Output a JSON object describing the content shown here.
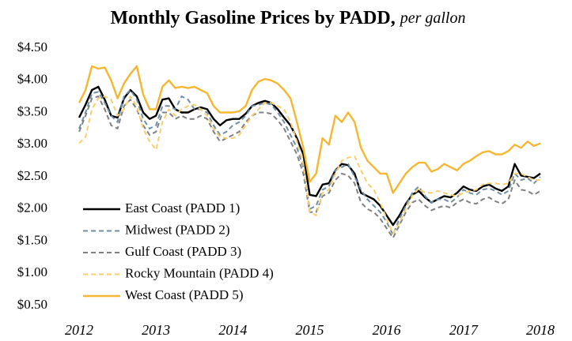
{
  "chart_data": {
    "type": "line",
    "title": "Monthly Gasoline Prices by PADD,",
    "subtitle": "per gallon",
    "categories": [
      "2012",
      null,
      null,
      null,
      null,
      null,
      null,
      null,
      null,
      null,
      null,
      null,
      "2013",
      null,
      null,
      null,
      null,
      null,
      null,
      null,
      null,
      null,
      null,
      null,
      "2014",
      null,
      null,
      null,
      null,
      null,
      null,
      null,
      null,
      null,
      null,
      null,
      "2015",
      null,
      null,
      null,
      null,
      null,
      null,
      null,
      null,
      null,
      null,
      null,
      "2016",
      null,
      null,
      null,
      null,
      null,
      null,
      null,
      null,
      null,
      null,
      null,
      "2017",
      null,
      null,
      null,
      null,
      null,
      null,
      null,
      null,
      null,
      null,
      null,
      "2018"
    ],
    "ylim": [
      0.5,
      4.5
    ],
    "yticks": [
      {
        "value": 0.5,
        "label": "$0.50"
      },
      {
        "value": 1,
        "label": "$1.00"
      },
      {
        "value": 1.5,
        "label": "$1.50"
      },
      {
        "value": 2,
        "label": "$2.00"
      },
      {
        "value": 2.5,
        "label": "$2.50"
      },
      {
        "value": 3,
        "label": "$3.00"
      },
      {
        "value": 3.5,
        "label": "$3.50"
      },
      {
        "value": 4,
        "label": "$4.00"
      },
      {
        "value": 4.5,
        "label": "$4.50"
      }
    ],
    "grid": false,
    "legend": "lower-left",
    "series": [
      {
        "name": "East Coast (PADD 1)",
        "color": "#000000",
        "dash": false,
        "values": [
          3.42,
          3.62,
          3.85,
          3.9,
          3.7,
          3.45,
          3.42,
          3.72,
          3.85,
          3.75,
          3.5,
          3.4,
          3.45,
          3.7,
          3.72,
          3.55,
          3.5,
          3.5,
          3.55,
          3.58,
          3.55,
          3.4,
          3.3,
          3.38,
          3.4,
          3.4,
          3.48,
          3.6,
          3.65,
          3.68,
          3.65,
          3.55,
          3.42,
          3.3,
          3.1,
          2.85,
          2.22,
          2.2,
          2.38,
          2.4,
          2.6,
          2.7,
          2.68,
          2.55,
          2.25,
          2.2,
          2.15,
          2.05,
          1.9,
          1.75,
          1.9,
          2.08,
          2.22,
          2.28,
          2.18,
          2.1,
          2.15,
          2.2,
          2.18,
          2.25,
          2.35,
          2.3,
          2.28,
          2.35,
          2.38,
          2.32,
          2.28,
          2.35,
          2.7,
          2.52,
          2.5,
          2.48,
          2.55
        ]
      },
      {
        "name": "Midwest (PADD 2)",
        "color": "#6e8fa6",
        "dash": true,
        "values": [
          3.25,
          3.5,
          3.8,
          3.82,
          3.65,
          3.45,
          3.35,
          3.75,
          3.85,
          3.7,
          3.4,
          3.25,
          3.3,
          3.6,
          3.6,
          3.55,
          3.75,
          3.7,
          3.55,
          3.55,
          3.5,
          3.3,
          3.15,
          3.2,
          3.3,
          3.35,
          3.45,
          3.6,
          3.62,
          3.65,
          3.62,
          3.5,
          3.35,
          3.15,
          2.95,
          2.65,
          2.0,
          2.05,
          2.3,
          2.35,
          2.6,
          2.65,
          2.7,
          2.5,
          2.3,
          2.15,
          2.05,
          1.95,
          1.8,
          1.6,
          1.85,
          2.05,
          2.25,
          2.35,
          2.2,
          2.1,
          2.15,
          2.15,
          2.1,
          2.18,
          2.3,
          2.25,
          2.22,
          2.3,
          2.32,
          2.28,
          2.22,
          2.28,
          2.55,
          2.45,
          2.48,
          2.4,
          2.5
        ]
      },
      {
        "name": "Gulf Coast (PADD 3)",
        "color": "#808080",
        "dash": true,
        "values": [
          3.2,
          3.45,
          3.72,
          3.75,
          3.55,
          3.3,
          3.25,
          3.6,
          3.7,
          3.55,
          3.3,
          3.15,
          3.2,
          3.5,
          3.5,
          3.4,
          3.45,
          3.4,
          3.4,
          3.45,
          3.4,
          3.2,
          3.05,
          3.1,
          3.15,
          3.2,
          3.35,
          3.45,
          3.5,
          3.5,
          3.48,
          3.38,
          3.25,
          3.05,
          2.85,
          2.55,
          1.95,
          1.95,
          2.2,
          2.25,
          2.45,
          2.55,
          2.52,
          2.4,
          2.1,
          2.0,
          1.95,
          1.85,
          1.7,
          1.55,
          1.75,
          1.95,
          2.1,
          2.15,
          2.05,
          1.98,
          2.02,
          2.05,
          2.02,
          2.1,
          2.15,
          2.1,
          2.08,
          2.15,
          2.18,
          2.12,
          2.08,
          2.15,
          2.45,
          2.3,
          2.28,
          2.22,
          2.28
        ]
      },
      {
        "name": "Rocky Mountain (PADD 4)",
        "color": "#f7cf70",
        "dash": true,
        "values": [
          3.02,
          3.12,
          3.55,
          3.72,
          3.75,
          3.7,
          3.45,
          3.55,
          3.75,
          3.6,
          3.25,
          3.05,
          2.92,
          3.35,
          3.55,
          3.45,
          3.55,
          3.6,
          3.62,
          3.55,
          3.45,
          3.25,
          3.12,
          3.1,
          3.1,
          3.15,
          3.3,
          3.45,
          3.55,
          3.65,
          3.65,
          3.6,
          3.55,
          3.35,
          3.05,
          2.7,
          1.95,
          1.9,
          2.25,
          2.3,
          2.55,
          2.75,
          2.8,
          2.82,
          2.6,
          2.4,
          2.3,
          2.1,
          1.85,
          1.62,
          1.78,
          2.0,
          2.2,
          2.32,
          2.25,
          2.25,
          2.28,
          2.25,
          2.22,
          2.2,
          2.25,
          2.28,
          2.3,
          2.38,
          2.4,
          2.4,
          2.38,
          2.4,
          2.55,
          2.55,
          2.5,
          2.45,
          2.45
        ]
      },
      {
        "name": "West Coast (PADD 5)",
        "color": "#f5b731",
        "dash": false,
        "values": [
          3.65,
          3.85,
          4.22,
          4.18,
          4.2,
          4.0,
          3.72,
          3.95,
          4.1,
          4.22,
          3.78,
          3.55,
          3.55,
          3.9,
          4.0,
          3.88,
          3.9,
          3.88,
          3.9,
          3.85,
          3.8,
          3.6,
          3.5,
          3.5,
          3.5,
          3.52,
          3.6,
          3.85,
          3.98,
          4.02,
          4.0,
          3.95,
          3.85,
          3.72,
          3.35,
          2.95,
          2.42,
          2.55,
          3.1,
          3.0,
          3.45,
          3.35,
          3.5,
          3.35,
          2.95,
          2.75,
          2.65,
          2.55,
          2.55,
          2.25,
          2.4,
          2.55,
          2.65,
          2.72,
          2.72,
          2.58,
          2.62,
          2.7,
          2.65,
          2.6,
          2.7,
          2.75,
          2.82,
          2.88,
          2.9,
          2.85,
          2.85,
          2.9,
          3.0,
          2.95,
          3.05,
          2.98,
          3.02
        ]
      }
    ]
  }
}
